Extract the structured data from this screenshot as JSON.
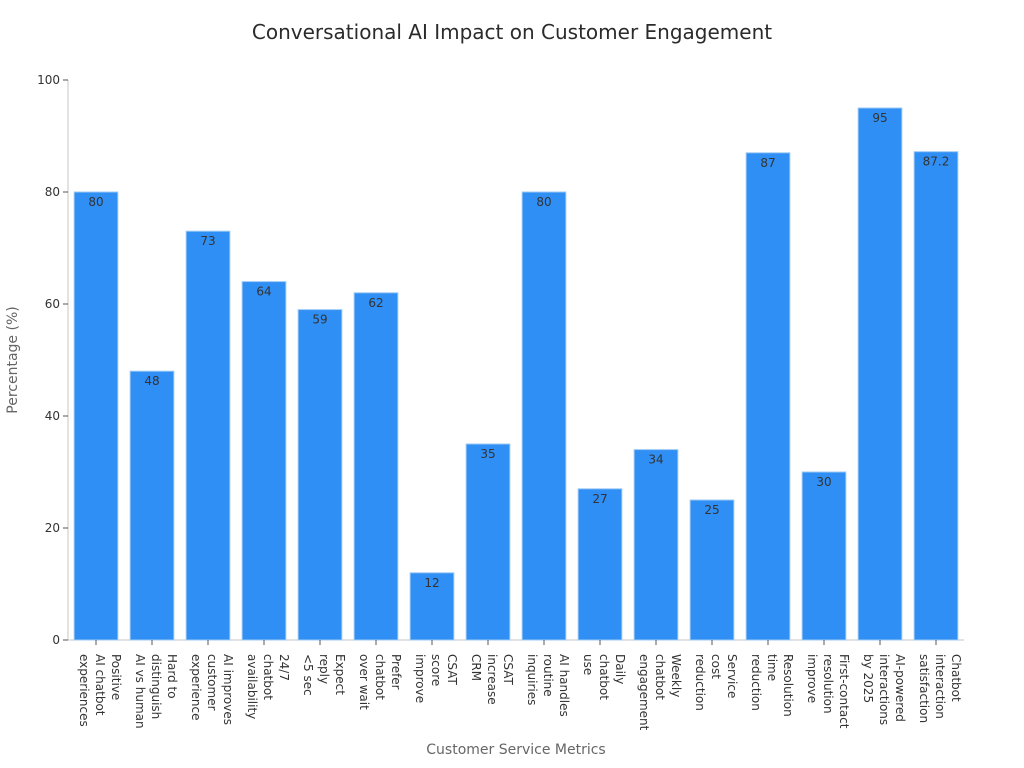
{
  "chart_data": {
    "type": "bar",
    "title": "Conversational AI Impact on Customer Engagement",
    "xlabel": "Customer Service Metrics",
    "ylabel": "Percentage (%)",
    "ylim": [
      0,
      100
    ],
    "yticks": [
      0,
      20,
      40,
      60,
      80,
      100
    ],
    "grid": false,
    "bar_color": "#2f8ff5",
    "bar_edge_color": "#9cc9f5",
    "categories": [
      "Positive AI chatbot experiences",
      "Hard to distinguish AI vs human",
      "AI improves customer experience",
      "24/7 chatbot availability",
      "Expect reply <5 sec",
      "Prefer chatbot over wait",
      "CSAT score improve",
      "CSAT increase CRM",
      "AI handles routine inquiries",
      "Daily chatbot use",
      "Weekly chatbot engagement",
      "Service cost reduction",
      "Resolution time reduction",
      "First-contact resolution improve",
      "AI-powered interactions by 2025",
      "Chatbot interaction satisfaction"
    ],
    "category_lines": [
      [
        "Positive",
        "AI chatbot",
        "experiences"
      ],
      [
        "Hard to",
        "distinguish",
        "AI vs human"
      ],
      [
        "AI improves",
        "customer",
        "experience"
      ],
      [
        "24/7",
        "chatbot",
        "availability"
      ],
      [
        "Expect",
        "reply",
        "<5 sec"
      ],
      [
        "Prefer",
        "chatbot",
        "over wait"
      ],
      [
        "CSAT",
        "score",
        "improve"
      ],
      [
        "CSAT",
        "increase",
        "CRM"
      ],
      [
        "AI handles",
        "routine",
        "inquiries"
      ],
      [
        "Daily",
        "chatbot",
        "use"
      ],
      [
        "Weekly",
        "chatbot",
        "engagement"
      ],
      [
        "Service",
        "cost",
        "reduction"
      ],
      [
        "Resolution",
        "time",
        "reduction"
      ],
      [
        "First-contact",
        "resolution",
        "improve"
      ],
      [
        "AI-powered",
        "interactions",
        "by 2025"
      ],
      [
        "Chatbot",
        "interaction",
        "satisfaction"
      ]
    ],
    "values": [
      80,
      48,
      73,
      64,
      59,
      62,
      12,
      35,
      80,
      27,
      34,
      25,
      87,
      30,
      95,
      87.2
    ],
    "value_labels": [
      "80",
      "48",
      "73",
      "64",
      "59",
      "62",
      "12",
      "35",
      "80",
      "27",
      "34",
      "25",
      "87",
      "30",
      "95",
      "87.2"
    ]
  }
}
